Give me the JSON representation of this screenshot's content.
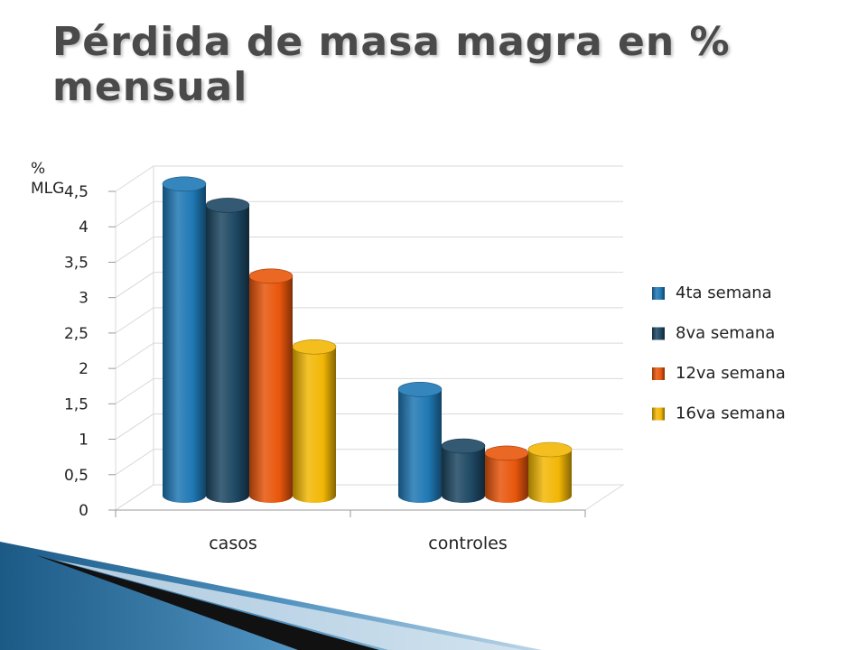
{
  "title": "Pérdida de masa magra en % mensual",
  "colors": {
    "title": "#4a4a4a",
    "grid": "#d9d9d9",
    "decor_blue": "#2a6d99"
  },
  "chart_data": {
    "type": "bar",
    "title": "Pérdida de masa magra en % mensual",
    "xlabel": "",
    "ylabel": "% MLG",
    "categories": [
      "casos",
      "controles"
    ],
    "ylim": [
      0,
      4.5
    ],
    "yticks": [
      "0",
      "0,5",
      "1",
      "1,5",
      "2",
      "2,5",
      "3",
      "3,5",
      "4",
      "4,5"
    ],
    "grid": true,
    "legend_position": "right",
    "series": [
      {
        "name": "4ta semana",
        "color": "#1f78b4",
        "values": [
          4.4,
          1.5
        ]
      },
      {
        "name": "8va semana",
        "color": "#1d4763",
        "values": [
          4.1,
          0.7
        ]
      },
      {
        "name": "12va semana",
        "color": "#e8560c",
        "values": [
          3.1,
          0.6
        ]
      },
      {
        "name": "16va semana",
        "color": "#f2b705",
        "values": [
          2.1,
          0.65
        ]
      }
    ]
  }
}
